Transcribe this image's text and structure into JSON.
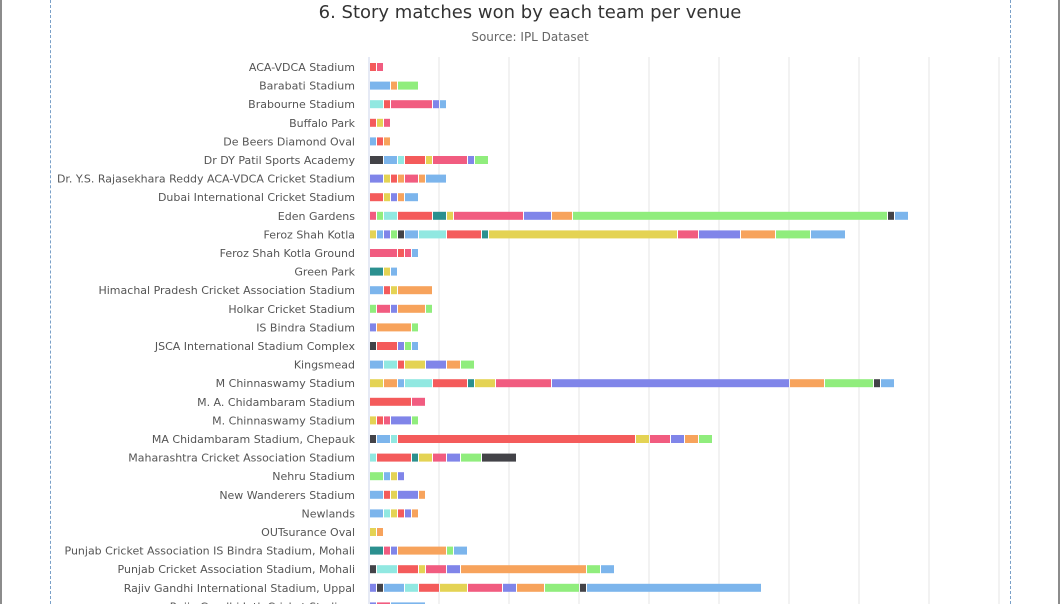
{
  "chart_data": {
    "type": "bar",
    "orientation": "horizontal",
    "stacked": true,
    "title": "6. Story matches won by each team per venue",
    "subtitle": "Source: IPL Dataset",
    "xlabel": "",
    "ylabel": "",
    "xlim": [
      0,
      45
    ],
    "grid": true,
    "colors": [
      "#f15c80",
      "#7cb5ec",
      "#90ed7d",
      "#f7a35c",
      "#8085e9",
      "#e4d354",
      "#2b908f",
      "#f45b5b",
      "#91e8e1",
      "#434348"
    ],
    "categories": [
      "ACA-VDCA Stadium",
      "Barabati Stadium",
      "Brabourne Stadium",
      "Buffalo Park",
      "De Beers Diamond Oval",
      "Dr DY Patil Sports Academy",
      "Dr. Y.S. Rajasekhara Reddy ACA-VDCA Cricket Stadium",
      "Dubai International Cricket Stadium",
      "Eden Gardens",
      "Feroz Shah Kotla",
      "Feroz Shah Kotla Ground",
      "Green Park",
      "Himachal Pradesh Cricket Association Stadium",
      "Holkar Cricket Stadium",
      "IS Bindra Stadium",
      "JSCA International Stadium Complex",
      "Kingsmead",
      "M Chinnaswamy Stadium",
      "M. A. Chidambaram Stadium",
      "M. Chinnaswamy Stadium",
      "MA Chidambaram Stadium, Chepauk",
      "Maharashtra Cricket Association Stadium",
      "Nehru Stadium",
      "New Wanderers Stadium",
      "Newlands",
      "OUTsurance Oval",
      "Punjab Cricket Association IS Bindra Stadium, Mohali",
      "Punjab Cricket Association Stadium, Mohali",
      "Rajiv Gandhi International Stadium, Uppal",
      "Rajiv Gandhi Intl. Cricket Stadium"
    ],
    "bars": [
      [
        {
          "v": 0.5,
          "c": "#f45b5b"
        },
        {
          "v": 0.5,
          "c": "#f15c80"
        }
      ],
      [
        {
          "v": 1.5,
          "c": "#7cb5ec"
        },
        {
          "v": 0.5,
          "c": "#f7a35c"
        },
        {
          "v": 1.5,
          "c": "#90ed7d"
        }
      ],
      [
        {
          "v": 1,
          "c": "#91e8e1"
        },
        {
          "v": 0.5,
          "c": "#f45b5b"
        },
        {
          "v": 3,
          "c": "#f15c80"
        },
        {
          "v": 0.5,
          "c": "#8085e9"
        },
        {
          "v": 0.5,
          "c": "#7cb5ec"
        }
      ],
      [
        {
          "v": 0.5,
          "c": "#f45b5b"
        },
        {
          "v": 0.5,
          "c": "#e4d354"
        },
        {
          "v": 0.5,
          "c": "#f15c80"
        }
      ],
      [
        {
          "v": 0.5,
          "c": "#7cb5ec"
        },
        {
          "v": 0.5,
          "c": "#f45b5b"
        },
        {
          "v": 0.5,
          "c": "#f7a35c"
        }
      ],
      [
        {
          "v": 1,
          "c": "#434348"
        },
        {
          "v": 1,
          "c": "#7cb5ec"
        },
        {
          "v": 0.5,
          "c": "#91e8e1"
        },
        {
          "v": 1.5,
          "c": "#f45b5b"
        },
        {
          "v": 0.5,
          "c": "#e4d354"
        },
        {
          "v": 2.5,
          "c": "#f15c80"
        },
        {
          "v": 0.5,
          "c": "#8085e9"
        },
        {
          "v": 1,
          "c": "#90ed7d"
        }
      ],
      [
        {
          "v": 1,
          "c": "#8085e9"
        },
        {
          "v": 0.5,
          "c": "#e4d354"
        },
        {
          "v": 0.5,
          "c": "#f45b5b"
        },
        {
          "v": 0.5,
          "c": "#f7a35c"
        },
        {
          "v": 1,
          "c": "#f15c80"
        },
        {
          "v": 0.5,
          "c": "#f7a35c"
        },
        {
          "v": 1.5,
          "c": "#7cb5ec"
        }
      ],
      [
        {
          "v": 1,
          "c": "#f45b5b"
        },
        {
          "v": 0.5,
          "c": "#e4d354"
        },
        {
          "v": 0.5,
          "c": "#8085e9"
        },
        {
          "v": 0.5,
          "c": "#f7a35c"
        },
        {
          "v": 1,
          "c": "#7cb5ec"
        }
      ],
      [
        {
          "v": 0.5,
          "c": "#f15c80"
        },
        {
          "v": 0.5,
          "c": "#90ed7d"
        },
        {
          "v": 1,
          "c": "#91e8e1"
        },
        {
          "v": 2.5,
          "c": "#f45b5b"
        },
        {
          "v": 1,
          "c": "#2b908f"
        },
        {
          "v": 0.5,
          "c": "#e4d354"
        },
        {
          "v": 5,
          "c": "#f15c80"
        },
        {
          "v": 2,
          "c": "#8085e9"
        },
        {
          "v": 1.5,
          "c": "#f7a35c"
        },
        {
          "v": 22.5,
          "c": "#90ed7d"
        },
        {
          "v": 0.5,
          "c": "#434348"
        },
        {
          "v": 1,
          "c": "#7cb5ec"
        }
      ],
      [
        {
          "v": 0.5,
          "c": "#e4d354"
        },
        {
          "v": 0.5,
          "c": "#7cb5ec"
        },
        {
          "v": 0.5,
          "c": "#8085e9"
        },
        {
          "v": 0.5,
          "c": "#90ed7d"
        },
        {
          "v": 0.5,
          "c": "#434348"
        },
        {
          "v": 1,
          "c": "#7cb5ec"
        },
        {
          "v": 2,
          "c": "#91e8e1"
        },
        {
          "v": 2.5,
          "c": "#f45b5b"
        },
        {
          "v": 0.5,
          "c": "#2b908f"
        },
        {
          "v": 13.5,
          "c": "#e4d354"
        },
        {
          "v": 1.5,
          "c": "#f15c80"
        },
        {
          "v": 3,
          "c": "#8085e9"
        },
        {
          "v": 2.5,
          "c": "#f7a35c"
        },
        {
          "v": 2.5,
          "c": "#90ed7d"
        },
        {
          "v": 2.5,
          "c": "#7cb5ec"
        }
      ],
      [
        {
          "v": 2,
          "c": "#f15c80"
        },
        {
          "v": 0.5,
          "c": "#f45b5b"
        },
        {
          "v": 0.5,
          "c": "#f15c80"
        },
        {
          "v": 0.5,
          "c": "#7cb5ec"
        }
      ],
      [
        {
          "v": 1,
          "c": "#2b908f"
        },
        {
          "v": 0.5,
          "c": "#e4d354"
        },
        {
          "v": 0.5,
          "c": "#7cb5ec"
        }
      ],
      [
        {
          "v": 1,
          "c": "#7cb5ec"
        },
        {
          "v": 0.5,
          "c": "#f45b5b"
        },
        {
          "v": 0.5,
          "c": "#e4d354"
        },
        {
          "v": 2.5,
          "c": "#f7a35c"
        }
      ],
      [
        {
          "v": 0.5,
          "c": "#90ed7d"
        },
        {
          "v": 1,
          "c": "#f15c80"
        },
        {
          "v": 0.5,
          "c": "#8085e9"
        },
        {
          "v": 2,
          "c": "#f7a35c"
        },
        {
          "v": 0.5,
          "c": "#90ed7d"
        }
      ],
      [
        {
          "v": 0.5,
          "c": "#8085e9"
        },
        {
          "v": 2.5,
          "c": "#f7a35c"
        },
        {
          "v": 0.5,
          "c": "#90ed7d"
        }
      ],
      [
        {
          "v": 0.5,
          "c": "#434348"
        },
        {
          "v": 1.5,
          "c": "#f45b5b"
        },
        {
          "v": 0.5,
          "c": "#8085e9"
        },
        {
          "v": 0.5,
          "c": "#90ed7d"
        },
        {
          "v": 0.5,
          "c": "#7cb5ec"
        }
      ],
      [
        {
          "v": 1,
          "c": "#7cb5ec"
        },
        {
          "v": 1,
          "c": "#91e8e1"
        },
        {
          "v": 0.5,
          "c": "#f45b5b"
        },
        {
          "v": 1.5,
          "c": "#e4d354"
        },
        {
          "v": 1.5,
          "c": "#8085e9"
        },
        {
          "v": 1,
          "c": "#f7a35c"
        },
        {
          "v": 1,
          "c": "#90ed7d"
        }
      ],
      [
        {
          "v": 1,
          "c": "#e4d354"
        },
        {
          "v": 1,
          "c": "#f7a35c"
        },
        {
          "v": 0.5,
          "c": "#7cb5ec"
        },
        {
          "v": 2,
          "c": "#91e8e1"
        },
        {
          "v": 2.5,
          "c": "#f45b5b"
        },
        {
          "v": 0.5,
          "c": "#2b908f"
        },
        {
          "v": 1.5,
          "c": "#e4d354"
        },
        {
          "v": 4,
          "c": "#f15c80"
        },
        {
          "v": 17,
          "c": "#8085e9"
        },
        {
          "v": 2.5,
          "c": "#f7a35c"
        },
        {
          "v": 3.5,
          "c": "#90ed7d"
        },
        {
          "v": 0.5,
          "c": "#434348"
        },
        {
          "v": 1,
          "c": "#7cb5ec"
        }
      ],
      [
        {
          "v": 3,
          "c": "#f45b5b"
        },
        {
          "v": 1,
          "c": "#f15c80"
        }
      ],
      [
        {
          "v": 0.5,
          "c": "#e4d354"
        },
        {
          "v": 0.5,
          "c": "#f45b5b"
        },
        {
          "v": 0.5,
          "c": "#f15c80"
        },
        {
          "v": 1.5,
          "c": "#8085e9"
        },
        {
          "v": 0.5,
          "c": "#90ed7d"
        }
      ],
      [
        {
          "v": 0.5,
          "c": "#434348"
        },
        {
          "v": 1,
          "c": "#7cb5ec"
        },
        {
          "v": 0.5,
          "c": "#91e8e1"
        },
        {
          "v": 17,
          "c": "#f45b5b"
        },
        {
          "v": 1,
          "c": "#e4d354"
        },
        {
          "v": 1.5,
          "c": "#f15c80"
        },
        {
          "v": 1,
          "c": "#8085e9"
        },
        {
          "v": 1,
          "c": "#f7a35c"
        },
        {
          "v": 1,
          "c": "#90ed7d"
        }
      ],
      [
        {
          "v": 0.5,
          "c": "#91e8e1"
        },
        {
          "v": 2.5,
          "c": "#f45b5b"
        },
        {
          "v": 0.5,
          "c": "#2b908f"
        },
        {
          "v": 1,
          "c": "#e4d354"
        },
        {
          "v": 1,
          "c": "#f15c80"
        },
        {
          "v": 1,
          "c": "#8085e9"
        },
        {
          "v": 1.5,
          "c": "#90ed7d"
        },
        {
          "v": 2.5,
          "c": "#434348"
        }
      ],
      [
        {
          "v": 1,
          "c": "#90ed7d"
        },
        {
          "v": 0.5,
          "c": "#7cb5ec"
        },
        {
          "v": 0.5,
          "c": "#e4d354"
        },
        {
          "v": 0.5,
          "c": "#8085e9"
        }
      ],
      [
        {
          "v": 1,
          "c": "#7cb5ec"
        },
        {
          "v": 0.5,
          "c": "#f45b5b"
        },
        {
          "v": 0.5,
          "c": "#e4d354"
        },
        {
          "v": 1.5,
          "c": "#8085e9"
        },
        {
          "v": 0.5,
          "c": "#f7a35c"
        }
      ],
      [
        {
          "v": 1,
          "c": "#7cb5ec"
        },
        {
          "v": 0.5,
          "c": "#91e8e1"
        },
        {
          "v": 0.5,
          "c": "#e4d354"
        },
        {
          "v": 0.5,
          "c": "#f45b5b"
        },
        {
          "v": 0.5,
          "c": "#8085e9"
        },
        {
          "v": 0.5,
          "c": "#f7a35c"
        }
      ],
      [
        {
          "v": 0.5,
          "c": "#e4d354"
        },
        {
          "v": 0.5,
          "c": "#f7a35c"
        }
      ],
      [
        {
          "v": 1,
          "c": "#2b908f"
        },
        {
          "v": 0.5,
          "c": "#f15c80"
        },
        {
          "v": 0.5,
          "c": "#8085e9"
        },
        {
          "v": 3.5,
          "c": "#f7a35c"
        },
        {
          "v": 0.5,
          "c": "#90ed7d"
        },
        {
          "v": 1,
          "c": "#7cb5ec"
        }
      ],
      [
        {
          "v": 0.5,
          "c": "#434348"
        },
        {
          "v": 1.5,
          "c": "#91e8e1"
        },
        {
          "v": 1.5,
          "c": "#f45b5b"
        },
        {
          "v": 0.5,
          "c": "#e4d354"
        },
        {
          "v": 1.5,
          "c": "#f15c80"
        },
        {
          "v": 1,
          "c": "#8085e9"
        },
        {
          "v": 9,
          "c": "#f7a35c"
        },
        {
          "v": 1,
          "c": "#90ed7d"
        },
        {
          "v": 1,
          "c": "#7cb5ec"
        }
      ],
      [
        {
          "v": 0.5,
          "c": "#8085e9"
        },
        {
          "v": 0.5,
          "c": "#434348"
        },
        {
          "v": 1.5,
          "c": "#7cb5ec"
        },
        {
          "v": 1,
          "c": "#91e8e1"
        },
        {
          "v": 1.5,
          "c": "#f45b5b"
        },
        {
          "v": 2,
          "c": "#e4d354"
        },
        {
          "v": 2.5,
          "c": "#f15c80"
        },
        {
          "v": 1,
          "c": "#8085e9"
        },
        {
          "v": 2,
          "c": "#f7a35c"
        },
        {
          "v": 2.5,
          "c": "#90ed7d"
        },
        {
          "v": 0.5,
          "c": "#434348"
        },
        {
          "v": 12.5,
          "c": "#7cb5ec"
        }
      ],
      [
        {
          "v": 0.5,
          "c": "#8085e9"
        },
        {
          "v": 1,
          "c": "#f15c80"
        },
        {
          "v": 2.5,
          "c": "#7cb5ec"
        }
      ]
    ]
  }
}
